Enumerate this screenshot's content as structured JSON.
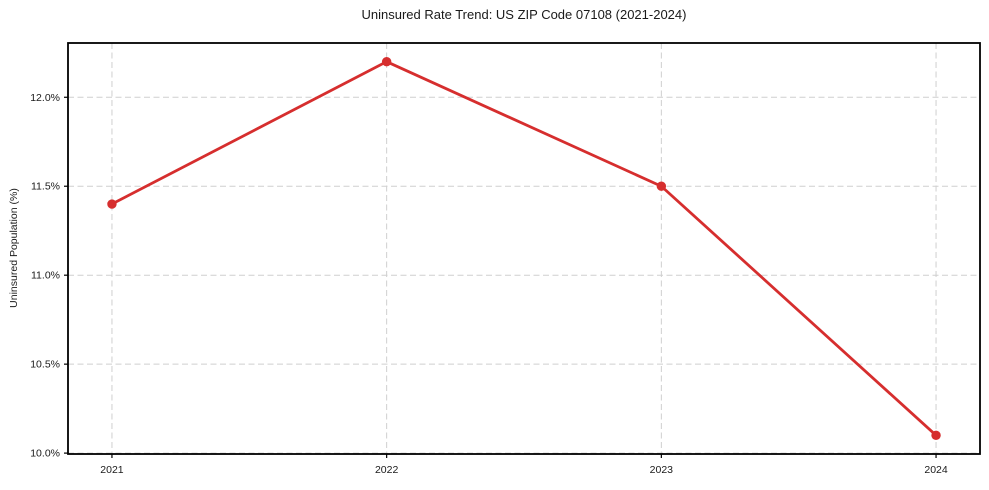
{
  "chart_data": {
    "type": "line",
    "title": "Uninsured Rate Trend: US ZIP Code 07108 (2021-2024)",
    "xlabel": "",
    "ylabel": "Uninsured Population (%)",
    "x": [
      2021,
      2022,
      2023,
      2024
    ],
    "values": [
      11.4,
      12.2,
      11.5,
      10.1
    ],
    "xtick_labels": [
      "2021",
      "2022",
      "2023",
      "2024"
    ],
    "yticks": [
      10.0,
      10.5,
      11.0,
      11.5,
      12.0
    ],
    "ytick_labels": [
      "10.0%",
      "10.5%",
      "11.0%",
      "11.5%",
      "12.0%"
    ],
    "xlim": [
      2020.84,
      2024.16
    ],
    "ylim": [
      9.995,
      12.305
    ],
    "grid": true,
    "grid_style": "dashed",
    "legend_position": "none",
    "line_color": "#d62e2e",
    "marker": "circle",
    "grid_color": "#cfcfcf",
    "spine_color": "#000000",
    "text_color": "#1a1a1a",
    "background_color": "#ffffff"
  }
}
